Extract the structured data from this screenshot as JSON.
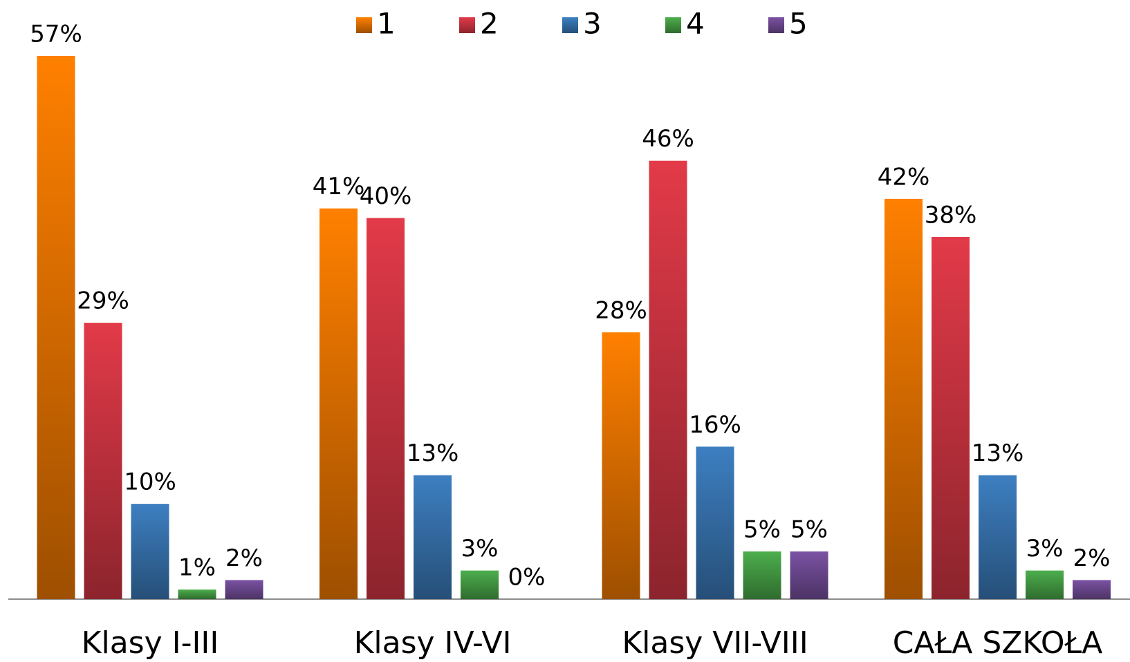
{
  "chart_data": {
    "type": "bar",
    "categories": [
      "Klasy I-III",
      "Klasy IV-VI",
      "Klasy VII-VIII",
      "CAŁA SZKOŁA"
    ],
    "series": [
      {
        "name": "1",
        "color": "#ff8000",
        "values": [
          57,
          41,
          28,
          42
        ],
        "value_labels": [
          "57%",
          "41%",
          "28%",
          "42%"
        ]
      },
      {
        "name": "2",
        "color": "#e23a48",
        "values": [
          29,
          40,
          46,
          38
        ],
        "value_labels": [
          "29%",
          "40%",
          "46%",
          "38%"
        ]
      },
      {
        "name": "3",
        "color": "#3d7fc1",
        "values": [
          10,
          13,
          16,
          13
        ],
        "value_labels": [
          "10%",
          "13%",
          "16%",
          "13%"
        ]
      },
      {
        "name": "4",
        "color": "#4cae4c",
        "values": [
          1,
          3,
          5,
          3
        ],
        "value_labels": [
          "1%",
          "3%",
          "5%",
          "3%"
        ]
      },
      {
        "name": "5",
        "color": "#7b52a3",
        "values": [
          2,
          0,
          5,
          2
        ],
        "value_labels": [
          "2%",
          "0%",
          "5%",
          "2%"
        ]
      }
    ],
    "ylim": [
      0,
      60
    ],
    "legend": "top"
  }
}
